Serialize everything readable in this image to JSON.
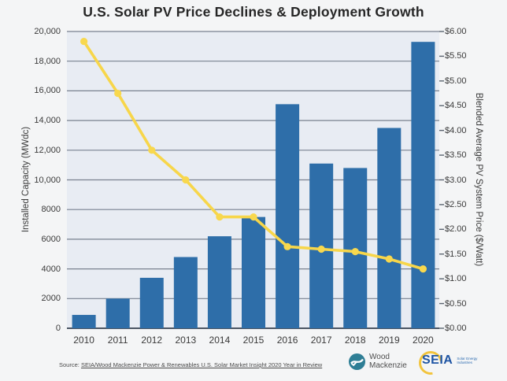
{
  "title": "U.S. Solar PV Price Declines & Deployment Growth",
  "source": {
    "prefix": "Source: ",
    "link_text": "SEIA/Wood Mackenzie Power & Renewables U.S. Solar Market Insight 2020 Year in Review"
  },
  "logos": {
    "woodmac": {
      "line1": "Wood",
      "line2": "Mackenzie"
    },
    "seia": {
      "acronym": "SEIA",
      "tagline_line1": "Solar Energy",
      "tagline_line2": "Industries"
    }
  },
  "colors": {
    "bar": "#2e6ea9",
    "line": "#f7d64a",
    "marker": "#f8d84e",
    "plot_bg": "#e8ecf3",
    "grid": "#79818f",
    "baseline": "#4b5563",
    "page_bg": "#f4f5f6"
  },
  "chart_data": {
    "type": "bar+line",
    "title": "U.S. Solar PV Price Declines & Deployment Growth",
    "categories": [
      "2010",
      "2011",
      "2012",
      "2013",
      "2014",
      "2015",
      "2016",
      "2017",
      "2018",
      "2019",
      "2020"
    ],
    "series": [
      {
        "name": "Installed Capacity (MWdc)",
        "type": "bar",
        "axis": "left",
        "color": "#2e6ea9",
        "values": [
          900,
          2000,
          3400,
          4800,
          6200,
          7500,
          15100,
          11100,
          10800,
          13500,
          19300
        ]
      },
      {
        "name": "Blended Average PV System Price ($/Watt)",
        "type": "line",
        "axis": "right",
        "color": "#f7d64a",
        "values": [
          5.8,
          4.75,
          3.6,
          3.0,
          2.25,
          2.25,
          1.65,
          1.6,
          1.55,
          1.4,
          1.2
        ]
      }
    ],
    "left_axis": {
      "label": "Installed Capacity (MWdc)",
      "min": 0,
      "max": 20000,
      "tick_labels": [
        "20,000",
        "18,000",
        "16,000",
        "14,000",
        "12,000",
        "10,000",
        "8000",
        "6000",
        "4000",
        "2000",
        "0"
      ]
    },
    "right_axis": {
      "label": "Blended Average PV System Price ($/Watt)",
      "min": 0,
      "max": 6,
      "tick_labels": [
        "$6.00",
        "$5.50",
        "$5.00",
        "$4.50",
        "$4.00",
        "$3.50",
        "$3.00",
        "$2.50",
        "$2.00",
        "$1.50",
        "$1.00",
        "$0.50",
        "$0.00"
      ]
    },
    "grid": true,
    "legend": false
  }
}
